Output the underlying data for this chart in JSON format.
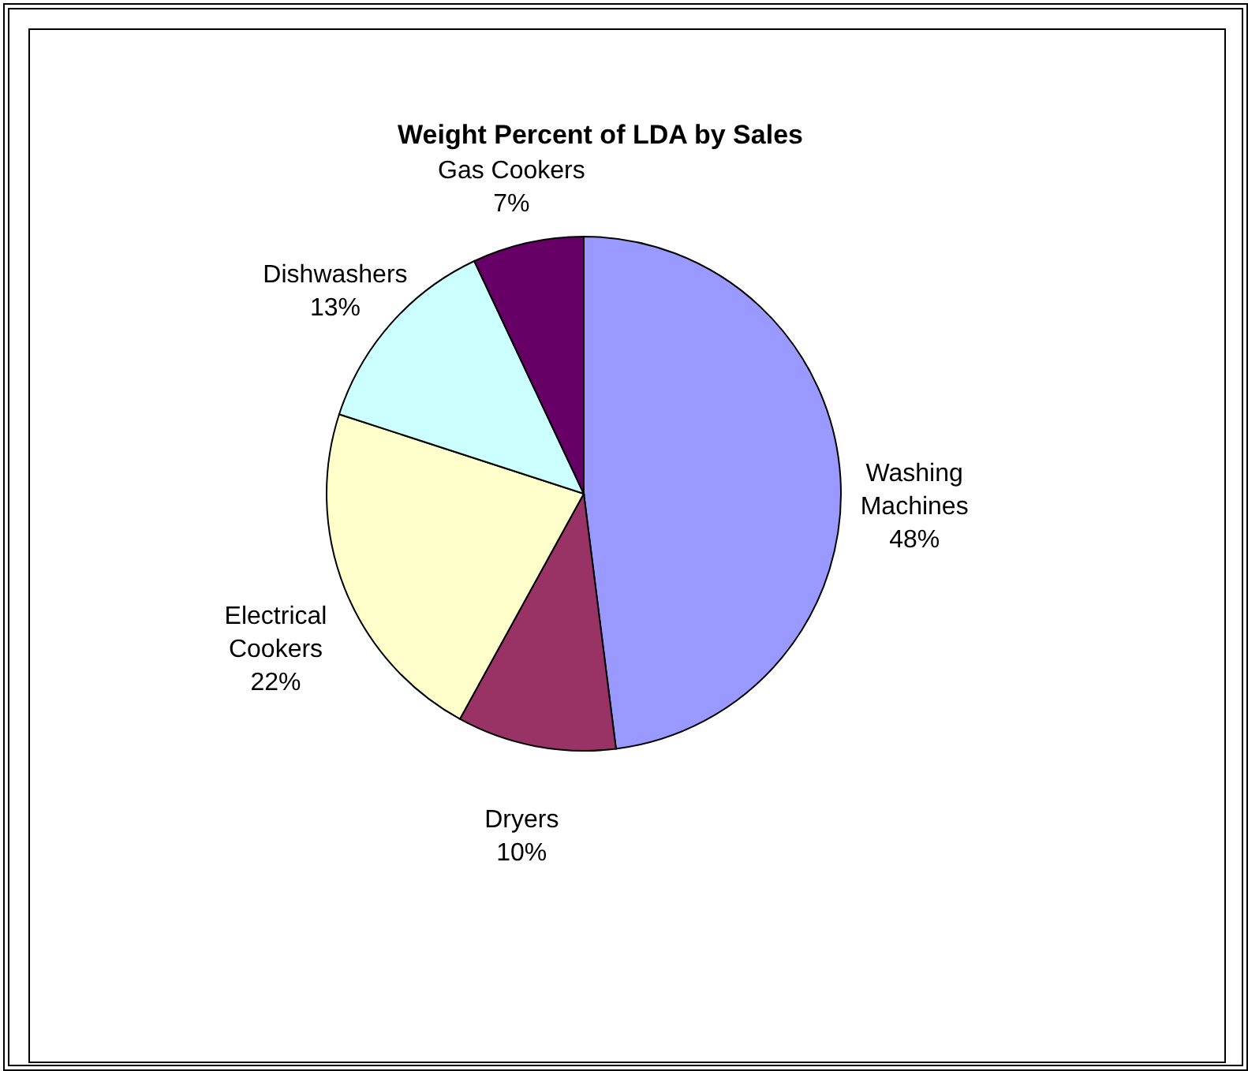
{
  "chart_data": {
    "type": "pie",
    "title": "Weight Percent of LDA by Sales",
    "categories": [
      "Washing Machines",
      "Dryers",
      "Electrical Cookers",
      "Dishwashers",
      "Gas Cookers"
    ],
    "values": [
      48,
      10,
      22,
      13,
      7
    ],
    "colors": [
      "#9999ff",
      "#993366",
      "#ffffcc",
      "#ccffff",
      "#660066"
    ],
    "value_labels": [
      "48%",
      "10%",
      "22%",
      "13%",
      "7%"
    ]
  }
}
